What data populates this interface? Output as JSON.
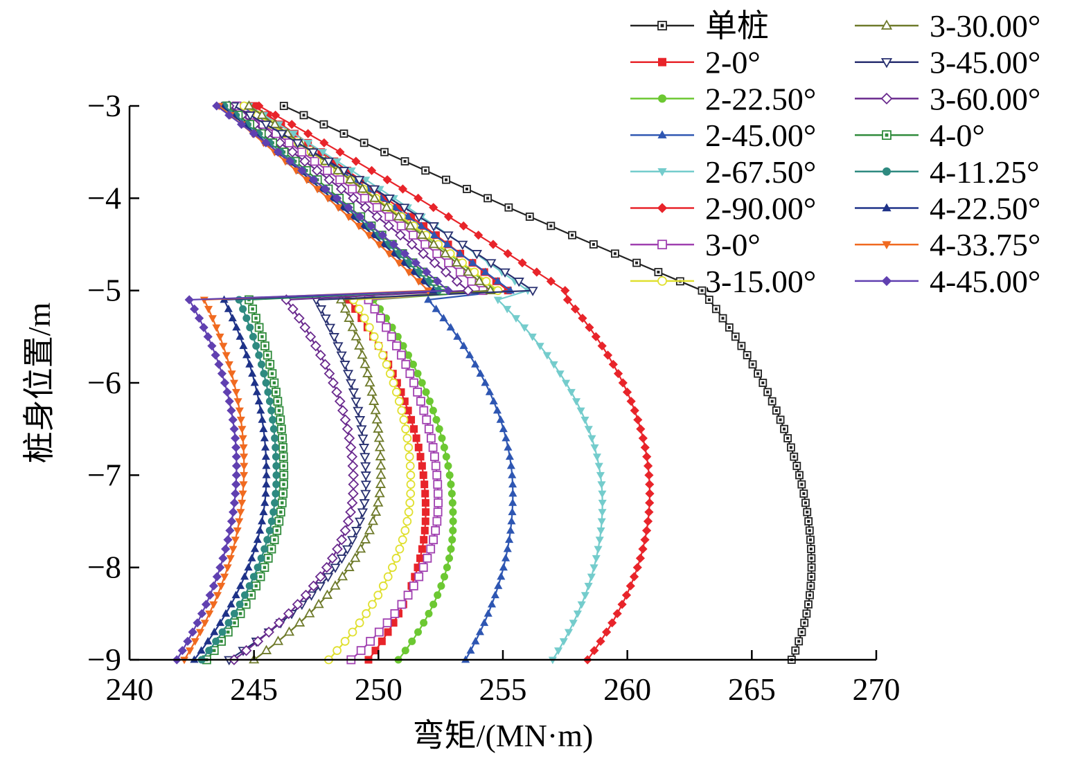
{
  "chart_data": {
    "type": "line",
    "xlabel": "弯矩/(MN·m)",
    "ylabel": "桩身位置/m",
    "xlim": [
      240,
      270
    ],
    "ylim": [
      -9,
      -3
    ],
    "xticks": [
      "240",
      "245",
      "250",
      "255",
      "260",
      "265",
      "270"
    ],
    "yticks": [
      "−3",
      "−4",
      "−5",
      "−6",
      "−7",
      "−8",
      "−9"
    ],
    "grid": false,
    "legend_position": "top-right",
    "y_step": 0.1,
    "series": [
      {
        "name": "单桩",
        "color": "#222222",
        "marker": "square-dot",
        "shape": "single",
        "x_top": 246.2,
        "x_kink": 263.0,
        "x_max": 267.4,
        "y_max": -8.0,
        "x_bottom": 266.6
      },
      {
        "name": "2-0°",
        "color": "#e8242a",
        "marker": "square",
        "shape": "pile",
        "x_top": 245.0,
        "x_kink_upper": 255.2,
        "x_kink_lower": 248.8,
        "x_max": 251.9,
        "y_max": -7.4,
        "x_bottom": 249.6
      },
      {
        "name": "2-22.50°",
        "color": "#6cc832",
        "marker": "circle",
        "shape": "pile",
        "x_top": 244.7,
        "x_kink_upper": 254.7,
        "x_kink_lower": 249.8,
        "x_max": 253.0,
        "y_max": -7.5,
        "x_bottom": 250.8
      },
      {
        "name": "2-45.00°",
        "color": "#2e56b2",
        "marker": "triangle-up",
        "shape": "pile",
        "x_top": 244.5,
        "x_kink_upper": 255.3,
        "x_kink_lower": 252.0,
        "x_max": 255.4,
        "y_max": -7.2,
        "x_bottom": 253.5
      },
      {
        "name": "2-67.50°",
        "color": "#74cccc",
        "marker": "triangle-down",
        "shape": "pile",
        "x_top": 244.8,
        "x_kink_upper": 256.0,
        "x_kink_lower": 254.8,
        "x_max": 259.0,
        "y_max": -7.3,
        "x_bottom": 257.0
      },
      {
        "name": "2-90.00°",
        "color": "#e8242a",
        "marker": "diamond",
        "shape": "pile",
        "x_top": 245.2,
        "x_kink_upper": 257.5,
        "x_kink_lower": 257.6,
        "x_max": 260.9,
        "y_max": -7.2,
        "x_bottom": 258.4
      },
      {
        "name": "3-0°",
        "color": "#a040b0",
        "marker": "square-open",
        "shape": "pile",
        "x_top": 244.3,
        "x_kink_upper": 254.2,
        "x_kink_lower": 249.6,
        "x_max": 252.4,
        "y_max": -7.3,
        "x_bottom": 248.9
      },
      {
        "name": "3-15.00°",
        "color": "#e0e030",
        "marker": "circle-open",
        "shape": "pile",
        "x_top": 244.6,
        "x_kink_upper": 254.8,
        "x_kink_lower": 249.0,
        "x_max": 251.3,
        "y_max": -7.1,
        "x_bottom": 248.0
      },
      {
        "name": "3-30.00°",
        "color": "#6e7a2a",
        "marker": "triangle-up-open",
        "shape": "pile",
        "x_top": 244.8,
        "x_kink_upper": 254.5,
        "x_kink_lower": 248.5,
        "x_max": 250.1,
        "y_max": -7.0,
        "x_bottom": 245.0
      },
      {
        "name": "3-45.00°",
        "color": "#283070",
        "marker": "triangle-down-open",
        "shape": "pile",
        "x_top": 244.2,
        "x_kink_upper": 256.2,
        "x_kink_lower": 247.5,
        "x_max": 249.5,
        "y_max": -7.1,
        "x_bottom": 244.0
      },
      {
        "name": "3-60.00°",
        "color": "#6a2a8e",
        "marker": "diamond-open",
        "shape": "pile",
        "x_top": 244.0,
        "x_kink_upper": 253.6,
        "x_kink_lower": 246.3,
        "x_max": 249.0,
        "y_max": -7.1,
        "x_bottom": 244.2
      },
      {
        "name": "4-0°",
        "color": "#2e8a3a",
        "marker": "square-dot",
        "shape": "pile",
        "x_top": 243.9,
        "x_kink_upper": 252.6,
        "x_kink_lower": 244.8,
        "x_max": 246.2,
        "y_max": -7.0,
        "x_bottom": 243.1
      },
      {
        "name": "4-11.25°",
        "color": "#2e8a80",
        "marker": "circle",
        "shape": "pile",
        "x_top": 243.8,
        "x_kink_upper": 252.4,
        "x_kink_lower": 244.4,
        "x_max": 245.9,
        "y_max": -7.0,
        "x_bottom": 242.9
      },
      {
        "name": "4-22.50°",
        "color": "#1e3288",
        "marker": "triangle-up",
        "shape": "pile",
        "x_top": 243.7,
        "x_kink_upper": 252.2,
        "x_kink_lower": 243.8,
        "x_max": 245.5,
        "y_max": -7.0,
        "x_bottom": 242.6
      },
      {
        "name": "4-33.75°",
        "color": "#f06a20",
        "marker": "triangle-down",
        "shape": "pile",
        "x_top": 243.6,
        "x_kink_upper": 252.0,
        "x_kink_lower": 243.0,
        "x_max": 244.6,
        "y_max": -6.9,
        "x_bottom": 242.2
      },
      {
        "name": "4-45.00°",
        "color": "#6040b0",
        "marker": "diamond",
        "shape": "pile",
        "x_top": 243.5,
        "x_kink_upper": 252.8,
        "x_kink_lower": 242.4,
        "x_max": 244.3,
        "y_max": -6.9,
        "x_bottom": 241.9
      }
    ]
  }
}
